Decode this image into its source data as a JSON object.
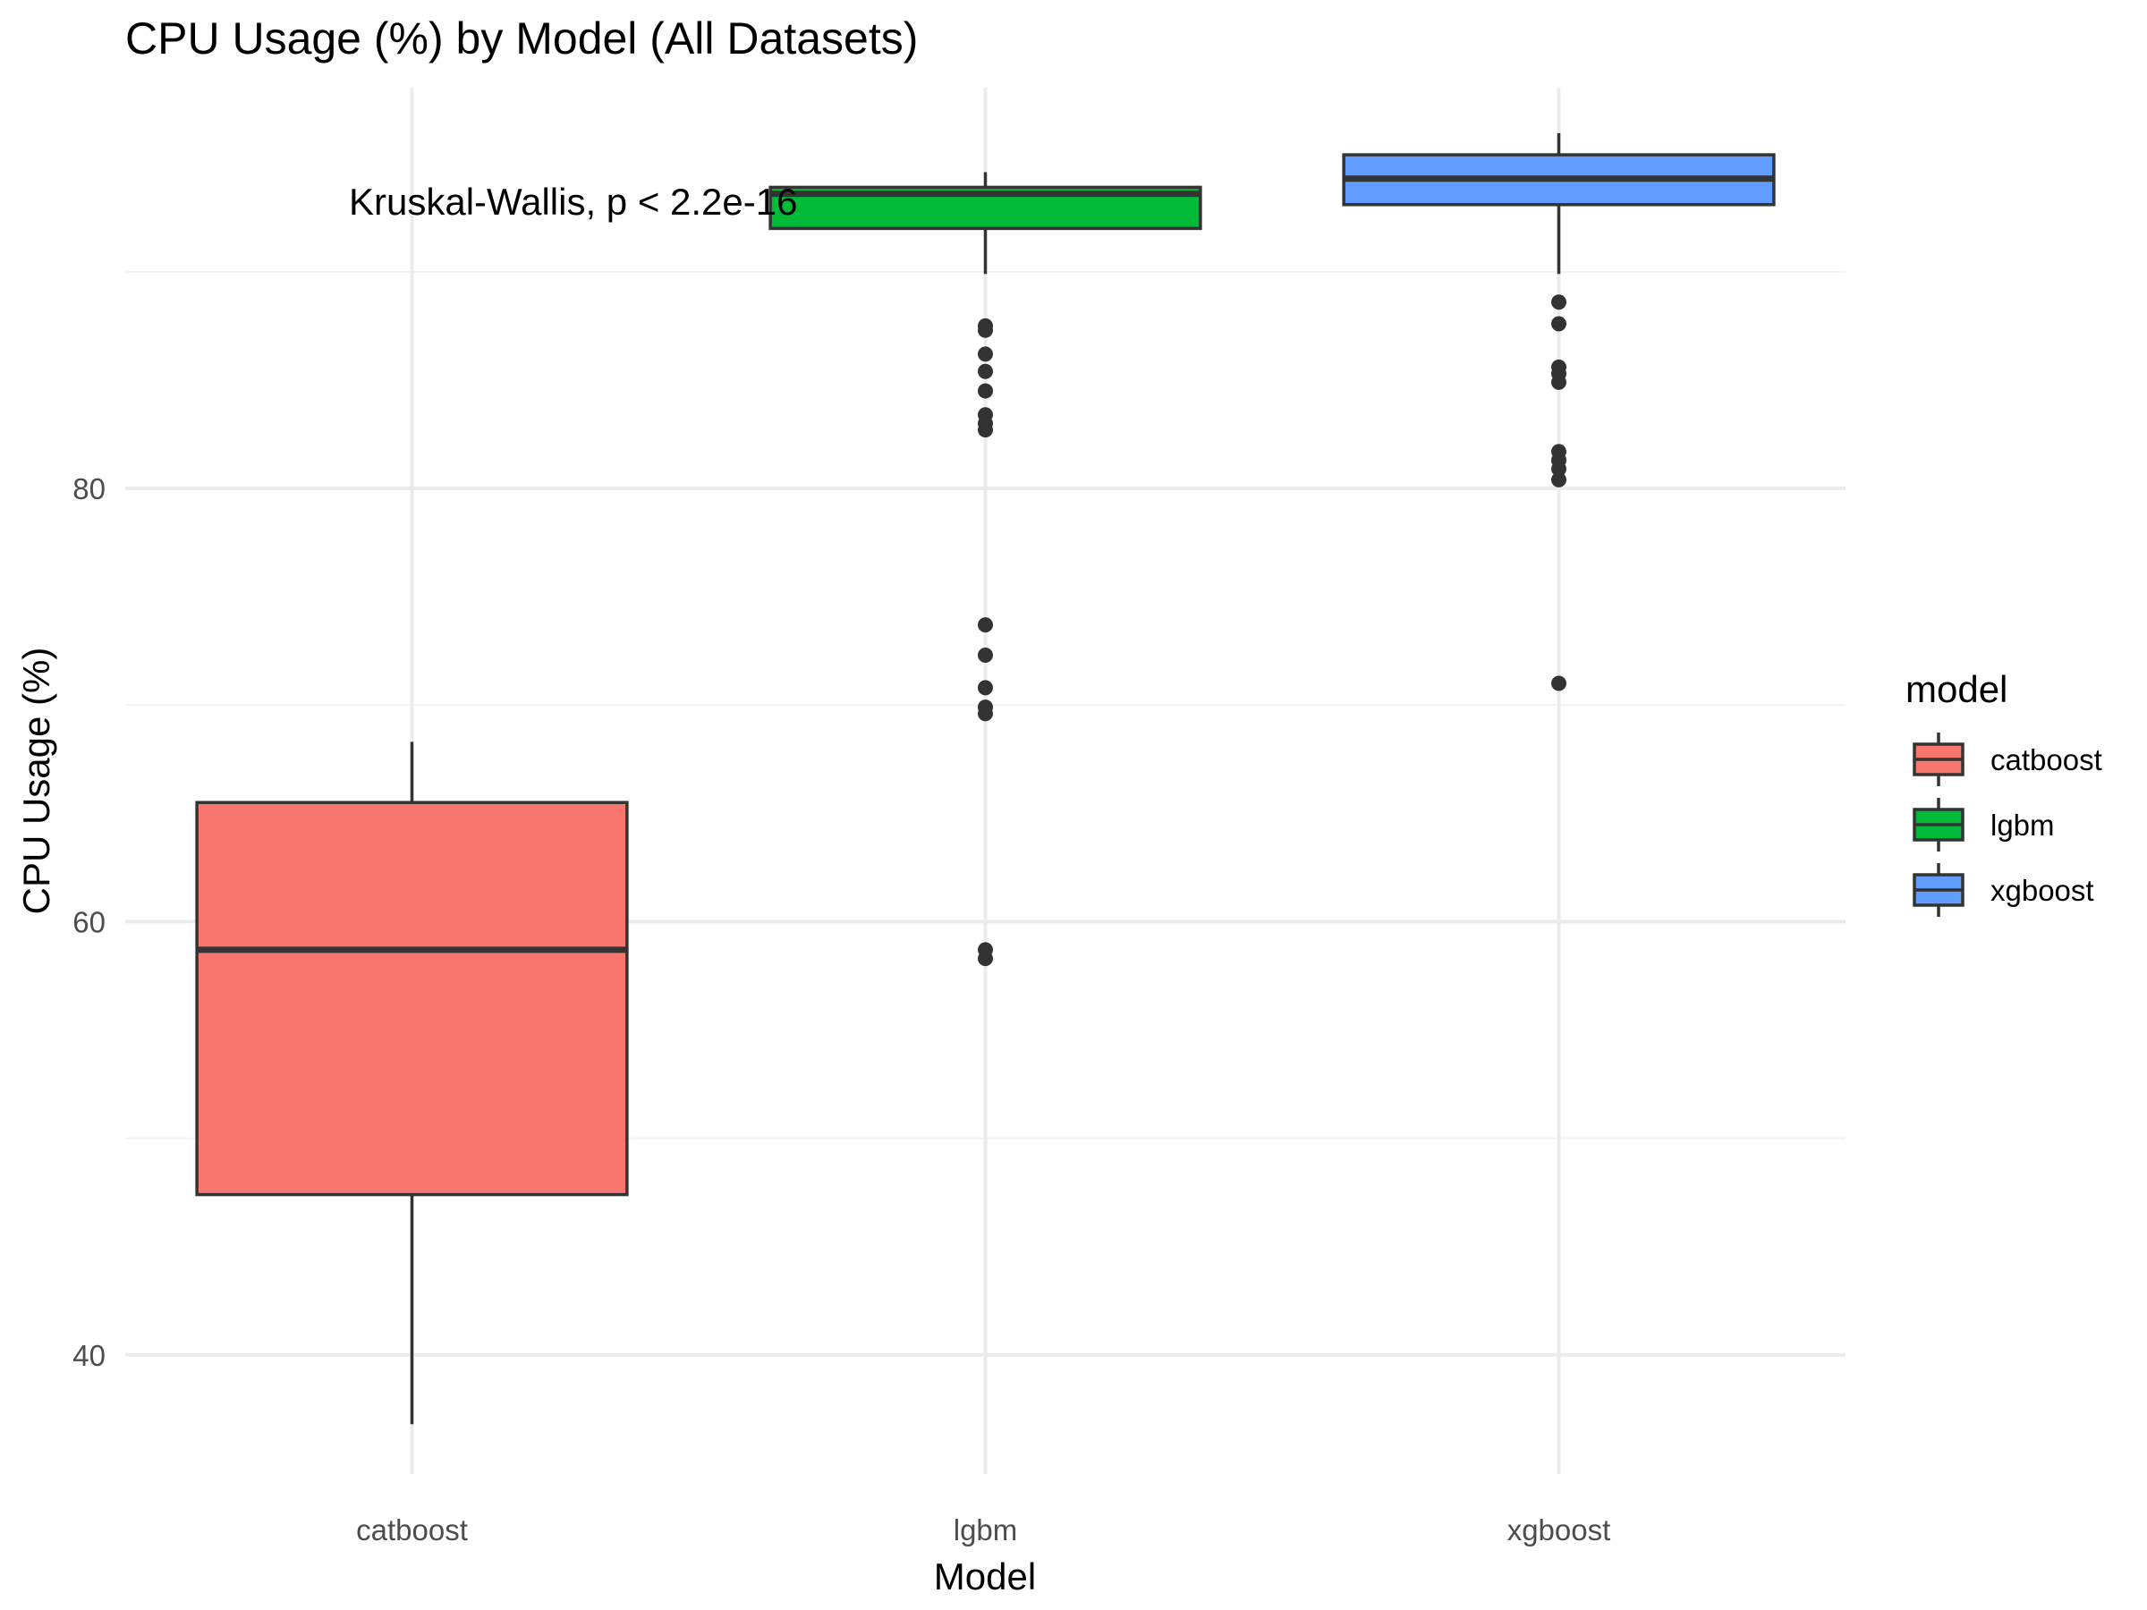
{
  "chart_data": {
    "type": "boxplot",
    "title": "CPU Usage (%) by Model (All Datasets)",
    "xlabel": "Model",
    "ylabel": "CPU Usage (%)",
    "ylim": [
      34.5,
      98.5
    ],
    "yticks": [
      40,
      60,
      80
    ],
    "y_minor_ticks": [
      50,
      70,
      90
    ],
    "grid": true,
    "annotation": "Kruskal-Wallis, p < 2.2e-16",
    "legend": {
      "title": "model",
      "position": "right",
      "entries": [
        "catboost",
        "lgbm",
        "xgboost"
      ]
    },
    "categories": [
      "catboost",
      "lgbm",
      "xgboost"
    ],
    "series": [
      {
        "name": "catboost",
        "color": "#F8766D",
        "whisker_low": 36.8,
        "q1": 47.4,
        "median": 58.7,
        "q3": 65.5,
        "whisker_high": 68.3,
        "outliers": []
      },
      {
        "name": "lgbm",
        "color": "#00BA38",
        "whisker_low": 89.9,
        "q1": 92.0,
        "median": 93.6,
        "q3": 93.9,
        "whisker_high": 94.6,
        "outliers": [
          87.5,
          87.3,
          86.2,
          85.4,
          84.5,
          83.4,
          83.0,
          82.7,
          73.7,
          72.3,
          70.8,
          69.9,
          69.6,
          58.7,
          58.3
        ]
      },
      {
        "name": "xgboost",
        "color": "#619CFF",
        "whisker_low": 89.9,
        "q1": 93.1,
        "median": 94.3,
        "q3": 95.4,
        "whisker_high": 96.4,
        "outliers": [
          88.6,
          87.6,
          85.6,
          85.3,
          84.9,
          81.7,
          81.3,
          80.9,
          80.4,
          71.0
        ]
      }
    ]
  }
}
